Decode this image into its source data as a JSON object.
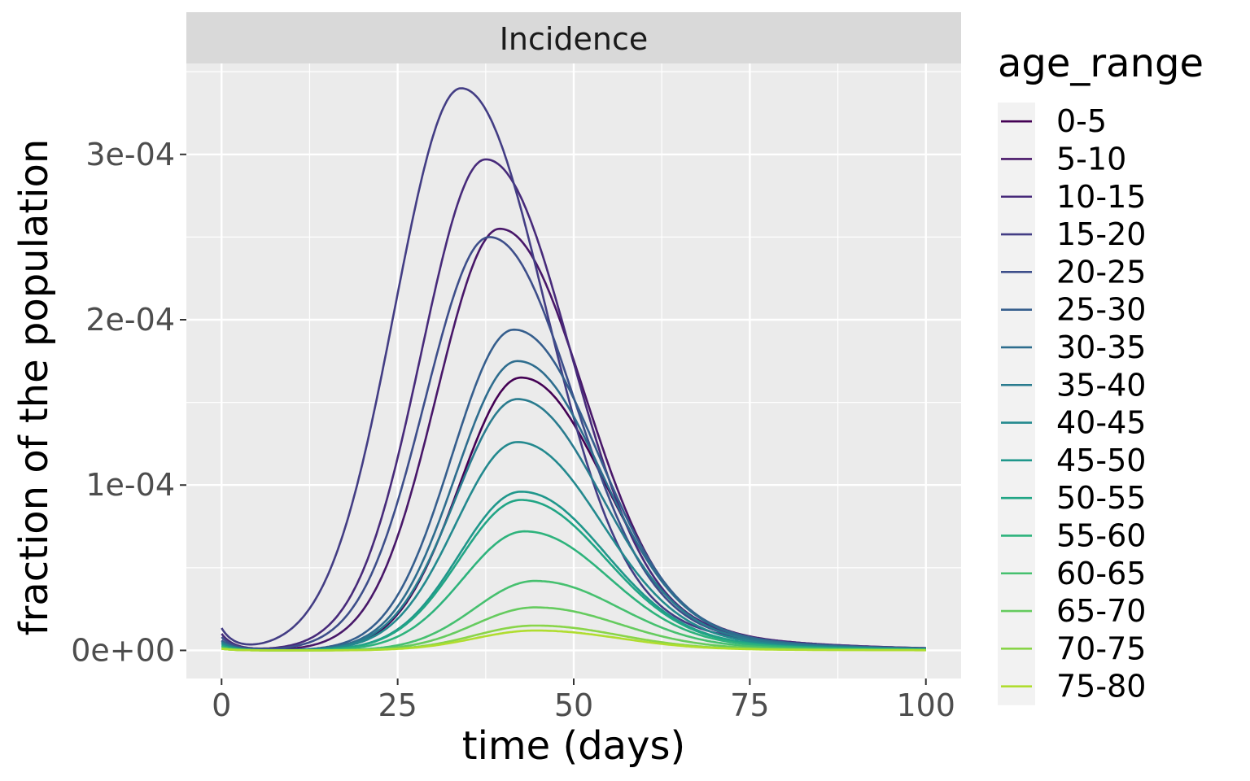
{
  "chart_data": {
    "type": "line",
    "facet_label": "Incidence",
    "xlabel": "time (days)",
    "ylabel": "fraction of the population",
    "xlim": [
      -5,
      105
    ],
    "ylim": [
      -1.7e-05,
      0.000355
    ],
    "x_ticks": [
      0,
      25,
      50,
      75,
      100
    ],
    "x_tick_labels": [
      "0",
      "25",
      "50",
      "75",
      "100"
    ],
    "y_ticks": [
      0,
      0.0001,
      0.0002,
      0.0003
    ],
    "y_tick_labels": [
      "0e+00",
      "1e-04",
      "2e-04",
      "3e-04"
    ],
    "grid": true,
    "legend_title": "age_range",
    "legend_position": "right",
    "series": [
      {
        "name": "0-5",
        "color": "#440154",
        "peak_t": 42.5,
        "peak": 0.000165,
        "start": 5e-06
      },
      {
        "name": "5-10",
        "color": "#481769",
        "peak_t": 39.5,
        "peak": 0.000255,
        "start": 6e-06
      },
      {
        "name": "10-15",
        "color": "#472A7A",
        "peak_t": 37.5,
        "peak": 0.000297,
        "start": 1e-05
      },
      {
        "name": "15-20",
        "color": "#433D84",
        "peak_t": 34.0,
        "peak": 0.00034,
        "start": 1.3e-05
      },
      {
        "name": "20-25",
        "color": "#3D4E8A",
        "peak_t": 38.0,
        "peak": 0.00025,
        "start": 8e-06
      },
      {
        "name": "25-30",
        "color": "#355E8D",
        "peak_t": 41.5,
        "peak": 0.000194,
        "start": 6e-06
      },
      {
        "name": "30-35",
        "color": "#2E6D8E",
        "peak_t": 42.0,
        "peak": 0.000175,
        "start": 5e-06
      },
      {
        "name": "35-40",
        "color": "#297B8E",
        "peak_t": 42.0,
        "peak": 0.000152,
        "start": 5e-06
      },
      {
        "name": "40-45",
        "color": "#23898E",
        "peak_t": 42.0,
        "peak": 0.000126,
        "start": 4e-06
      },
      {
        "name": "45-50",
        "color": "#1F978B",
        "peak_t": 42.5,
        "peak": 9.6e-05,
        "start": 3e-06
      },
      {
        "name": "50-55",
        "color": "#21A585",
        "peak_t": 42.5,
        "peak": 9.1e-05,
        "start": 3e-06
      },
      {
        "name": "55-60",
        "color": "#2EB37C",
        "peak_t": 43.0,
        "peak": 7.2e-05,
        "start": 2e-06
      },
      {
        "name": "60-65",
        "color": "#46C06F",
        "peak_t": 44.5,
        "peak": 4.2e-05,
        "start": 2e-06
      },
      {
        "name": "65-70",
        "color": "#65CB5E",
        "peak_t": 44.5,
        "peak": 2.6e-05,
        "start": 1e-06
      },
      {
        "name": "70-75",
        "color": "#89D548",
        "peak_t": 44.5,
        "peak": 1.5e-05,
        "start": 1e-06
      },
      {
        "name": "75-80",
        "color": "#B0DD2F",
        "peak_t": 44.5,
        "peak": 1.2e-05,
        "start": 1e-06
      }
    ]
  }
}
